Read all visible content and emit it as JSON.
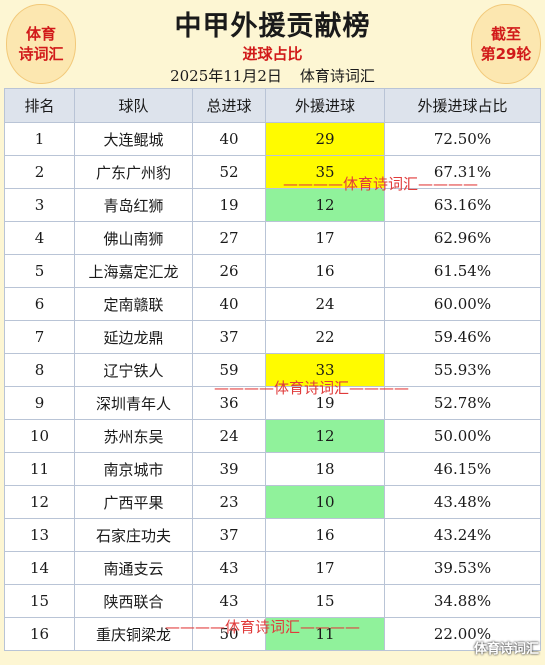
{
  "header": {
    "title": "中甲外援贡献榜",
    "subtitle": "进球占比",
    "date": "2025年11月2日",
    "source": "体育诗词汇",
    "left_badge": [
      "体育",
      "诗词汇"
    ],
    "right_badge": [
      "截至",
      "第29轮"
    ]
  },
  "table": {
    "columns": [
      "排名",
      "球队",
      "总进球",
      "外援进球",
      "外援进球占比"
    ],
    "rows": [
      {
        "rank": "1",
        "team": "大连鲲城",
        "total": "40",
        "foreign": "29",
        "ratio": "72.50%",
        "highlight": "yellow"
      },
      {
        "rank": "2",
        "team": "广东广州豹",
        "total": "52",
        "foreign": "35",
        "ratio": "67.31%",
        "highlight": "yellow"
      },
      {
        "rank": "3",
        "team": "青岛红狮",
        "total": "19",
        "foreign": "12",
        "ratio": "63.16%",
        "highlight": "green"
      },
      {
        "rank": "4",
        "team": "佛山南狮",
        "total": "27",
        "foreign": "17",
        "ratio": "62.96%",
        "highlight": ""
      },
      {
        "rank": "5",
        "team": "上海嘉定汇龙",
        "total": "26",
        "foreign": "16",
        "ratio": "61.54%",
        "highlight": ""
      },
      {
        "rank": "6",
        "team": "定南赣联",
        "total": "40",
        "foreign": "24",
        "ratio": "60.00%",
        "highlight": ""
      },
      {
        "rank": "7",
        "team": "延边龙鼎",
        "total": "37",
        "foreign": "22",
        "ratio": "59.46%",
        "highlight": ""
      },
      {
        "rank": "8",
        "team": "辽宁铁人",
        "total": "59",
        "foreign": "33",
        "ratio": "55.93%",
        "highlight": "yellow"
      },
      {
        "rank": "9",
        "team": "深圳青年人",
        "total": "36",
        "foreign": "19",
        "ratio": "52.78%",
        "highlight": ""
      },
      {
        "rank": "10",
        "team": "苏州东吴",
        "total": "24",
        "foreign": "12",
        "ratio": "50.00%",
        "highlight": "green"
      },
      {
        "rank": "11",
        "team": "南京城市",
        "total": "39",
        "foreign": "18",
        "ratio": "46.15%",
        "highlight": ""
      },
      {
        "rank": "12",
        "team": "广西平果",
        "total": "23",
        "foreign": "10",
        "ratio": "43.48%",
        "highlight": "green"
      },
      {
        "rank": "13",
        "team": "石家庄功夫",
        "total": "37",
        "foreign": "16",
        "ratio": "43.24%",
        "highlight": ""
      },
      {
        "rank": "14",
        "team": "南通支云",
        "total": "43",
        "foreign": "17",
        "ratio": "39.53%",
        "highlight": ""
      },
      {
        "rank": "15",
        "team": "陕西联合",
        "total": "43",
        "foreign": "15",
        "ratio": "34.88%",
        "highlight": ""
      },
      {
        "rank": "16",
        "team": "重庆铜梁龙",
        "total": "50",
        "foreign": "11",
        "ratio": "22.00%",
        "highlight": "green"
      }
    ]
  },
  "watermarks": [
    "————体育诗词汇————",
    "————体育诗词汇————",
    "————体育诗词汇————"
  ],
  "corner_watermark": "体育诗词汇"
}
